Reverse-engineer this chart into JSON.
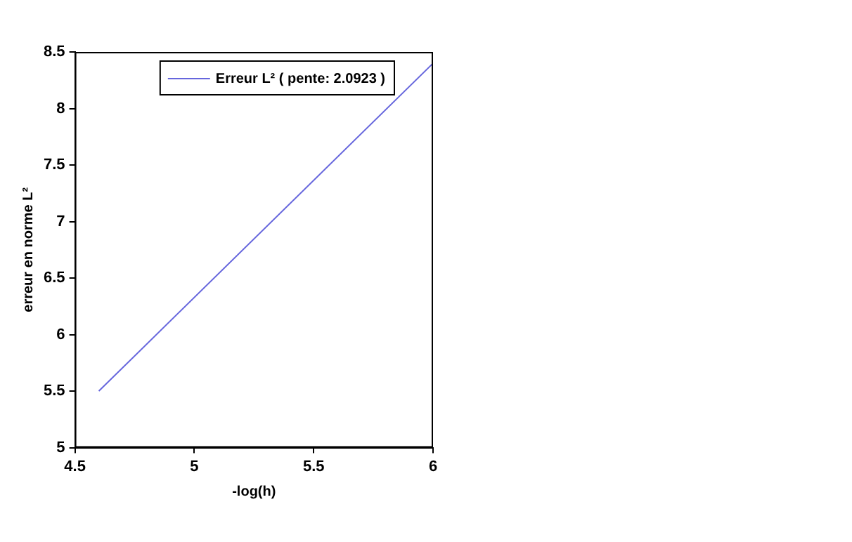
{
  "chart_data": {
    "type": "line",
    "xlabel": "-log(h)",
    "ylabel": "erreur en norme L²",
    "x": [
      4.6,
      6
    ],
    "series": [
      {
        "name": "Erreur L² ( pente: 2.0923 )",
        "color": "#6666dd",
        "values": [
          5.5,
          8.4
        ]
      }
    ],
    "xlim": [
      4.5,
      6
    ],
    "xticks": [
      4.5,
      5,
      5.5,
      6
    ],
    "ylim": [
      5,
      8.5
    ],
    "yticks": [
      5,
      5.5,
      6,
      6.5,
      7,
      7.5,
      8,
      8.5
    ],
    "grid": false,
    "legend": "top right",
    "marker": "none",
    "line_style": "solid"
  }
}
